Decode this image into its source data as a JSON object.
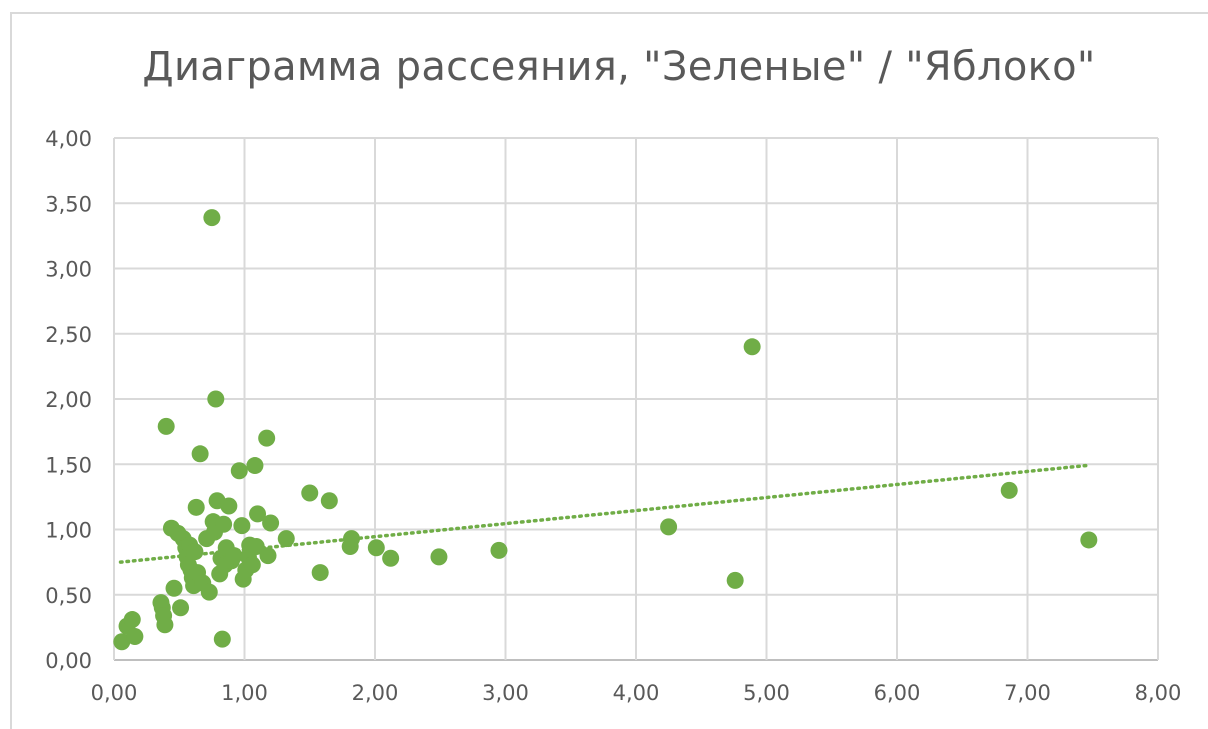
{
  "chart_data": {
    "type": "scatter",
    "title": "Диаграмма рассеяния, \"Зеленые\" / \"Яблоко\"",
    "xlabel": "",
    "ylabel": "",
    "xlim": [
      0,
      8
    ],
    "ylim": [
      0,
      4
    ],
    "x_ticks": [
      "0,00",
      "1,00",
      "2,00",
      "3,00",
      "4,00",
      "5,00",
      "6,00",
      "7,00",
      "8,00"
    ],
    "y_ticks": [
      "0,00",
      "0,50",
      "1,00",
      "1,50",
      "2,00",
      "2,50",
      "3,00",
      "3,50",
      "4,00"
    ],
    "grid": true,
    "legend": "none",
    "marker_color": "#70ad47",
    "trendline": {
      "type": "linear",
      "style": "dotted",
      "color": "#70ad47",
      "x": [
        0.05,
        7.45
      ],
      "y": [
        0.75,
        1.49
      ]
    },
    "points": [
      [
        0.06,
        0.14
      ],
      [
        0.1,
        0.26
      ],
      [
        0.14,
        0.31
      ],
      [
        0.16,
        0.18
      ],
      [
        0.36,
        0.44
      ],
      [
        0.37,
        0.4
      ],
      [
        0.38,
        0.34
      ],
      [
        0.39,
        0.27
      ],
      [
        0.4,
        1.79
      ],
      [
        0.44,
        1.01
      ],
      [
        0.46,
        0.55
      ],
      [
        0.49,
        0.97
      ],
      [
        0.51,
        0.4
      ],
      [
        0.53,
        0.93
      ],
      [
        0.55,
        0.86
      ],
      [
        0.56,
        0.79
      ],
      [
        0.57,
        0.73
      ],
      [
        0.58,
        0.88
      ],
      [
        0.59,
        0.69
      ],
      [
        0.6,
        0.63
      ],
      [
        0.61,
        0.57
      ],
      [
        0.62,
        0.83
      ],
      [
        0.63,
        1.17
      ],
      [
        0.64,
        0.67
      ],
      [
        0.66,
        1.58
      ],
      [
        0.68,
        0.59
      ],
      [
        0.71,
        0.93
      ],
      [
        0.73,
        0.52
      ],
      [
        0.75,
        3.39
      ],
      [
        0.76,
        1.06
      ],
      [
        0.77,
        0.98
      ],
      [
        0.78,
        2.0
      ],
      [
        0.79,
        1.22
      ],
      [
        0.81,
        0.66
      ],
      [
        0.82,
        0.78
      ],
      [
        0.83,
        0.16
      ],
      [
        0.84,
        1.04
      ],
      [
        0.85,
        0.73
      ],
      [
        0.86,
        0.86
      ],
      [
        0.88,
        1.18
      ],
      [
        0.9,
        0.76
      ],
      [
        0.92,
        0.8
      ],
      [
        0.96,
        1.45
      ],
      [
        0.98,
        1.03
      ],
      [
        0.99,
        0.62
      ],
      [
        1.01,
        0.69
      ],
      [
        1.03,
        0.79
      ],
      [
        1.04,
        0.88
      ],
      [
        1.06,
        0.73
      ],
      [
        1.08,
        1.49
      ],
      [
        1.09,
        0.87
      ],
      [
        1.1,
        1.12
      ],
      [
        1.17,
        1.7
      ],
      [
        1.18,
        0.8
      ],
      [
        1.2,
        1.05
      ],
      [
        1.32,
        0.93
      ],
      [
        1.5,
        1.28
      ],
      [
        1.58,
        0.67
      ],
      [
        1.65,
        1.22
      ],
      [
        1.81,
        0.87
      ],
      [
        1.82,
        0.93
      ],
      [
        2.01,
        0.86
      ],
      [
        2.12,
        0.78
      ],
      [
        2.49,
        0.79
      ],
      [
        2.95,
        0.84
      ],
      [
        4.25,
        1.02
      ],
      [
        4.76,
        0.61
      ],
      [
        4.89,
        2.4
      ],
      [
        6.86,
        1.3
      ],
      [
        7.47,
        0.92
      ]
    ]
  }
}
